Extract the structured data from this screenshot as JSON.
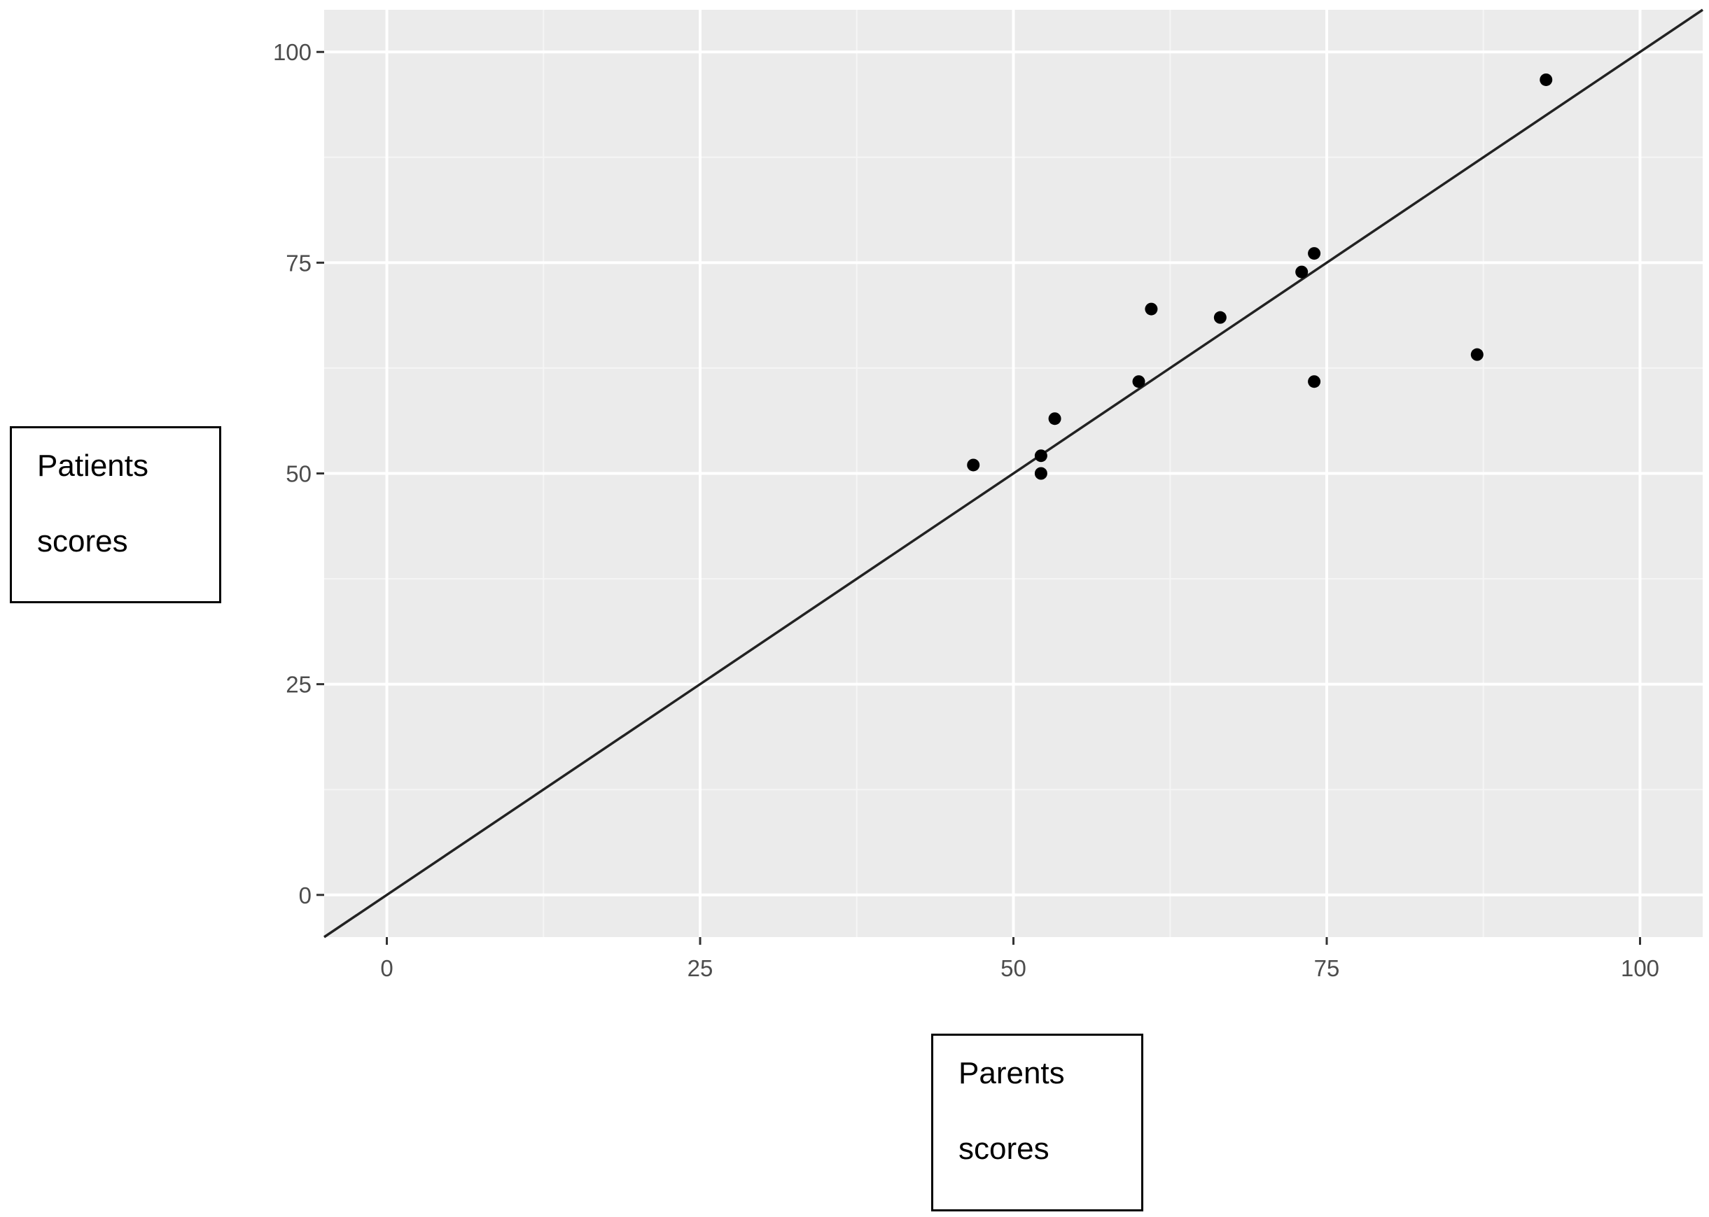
{
  "chart_data": {
    "type": "scatter",
    "title": "",
    "xlabel": "Parents scores",
    "ylabel": "Patients scores",
    "xlabel_lines": [
      "Parents",
      "scores"
    ],
    "ylabel_lines": [
      "Patients",
      "scores"
    ],
    "xlim": [
      -5,
      105
    ],
    "ylim": [
      -5,
      105
    ],
    "x_ticks": [
      0,
      25,
      50,
      75,
      100
    ],
    "y_ticks": [
      0,
      25,
      50,
      75,
      100
    ],
    "x_tick_labels": [
      "0",
      "25",
      "50",
      "75",
      "100"
    ],
    "y_tick_labels": [
      "0",
      "25",
      "50",
      "75",
      "100"
    ],
    "grid": true,
    "background": "#ebebeb",
    "reference_line": {
      "type": "identity",
      "slope": 1,
      "intercept": 0,
      "color": "#222222"
    },
    "points": [
      {
        "x": 46.8,
        "y": 51.0
      },
      {
        "x": 52.2,
        "y": 52.1
      },
      {
        "x": 52.2,
        "y": 50.0
      },
      {
        "x": 53.3,
        "y": 56.5
      },
      {
        "x": 60.0,
        "y": 60.9
      },
      {
        "x": 61.0,
        "y": 69.5
      },
      {
        "x": 66.5,
        "y": 68.5
      },
      {
        "x": 73.0,
        "y": 73.9
      },
      {
        "x": 74.0,
        "y": 76.1
      },
      {
        "x": 74.0,
        "y": 60.9
      },
      {
        "x": 87.0,
        "y": 64.1
      },
      {
        "x": 92.5,
        "y": 96.7
      }
    ],
    "point_color": "#000000"
  }
}
